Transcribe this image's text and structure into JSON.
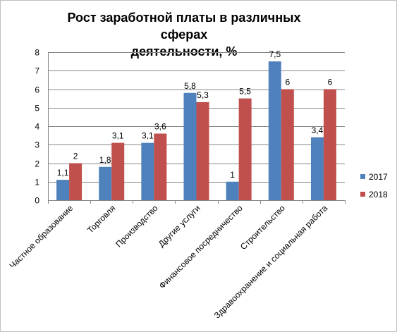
{
  "chart_data": {
    "type": "bar",
    "title_lines": [
      "Рост заработной платы в различных сферах",
      "деятельности, %"
    ],
    "categories": [
      "Частное образование",
      "Торговля",
      "Производство",
      "Другие услуги",
      "Финансовое посредничество",
      "Строительство",
      "Здравоохранение и социальная работа"
    ],
    "series": [
      {
        "name": "2017",
        "color": "#4F81BD",
        "values": [
          1.1,
          1.8,
          3.1,
          5.8,
          1,
          7.5,
          3.4
        ],
        "labels": [
          "1,1",
          "1,8",
          "3,1",
          "5,8",
          "1",
          "7,5",
          "3,4"
        ]
      },
      {
        "name": "2018",
        "color": "#C0504D",
        "values": [
          2,
          3.1,
          3.6,
          5.3,
          5.5,
          6,
          6
        ],
        "labels": [
          "2",
          "3,1",
          "3,6",
          "5,3",
          "5,5",
          "6",
          "6"
        ]
      }
    ],
    "ylim": [
      0,
      8
    ],
    "yticks": [
      0,
      1,
      2,
      3,
      4,
      5,
      6,
      7,
      8
    ],
    "grid": true,
    "legend_position": "right"
  }
}
